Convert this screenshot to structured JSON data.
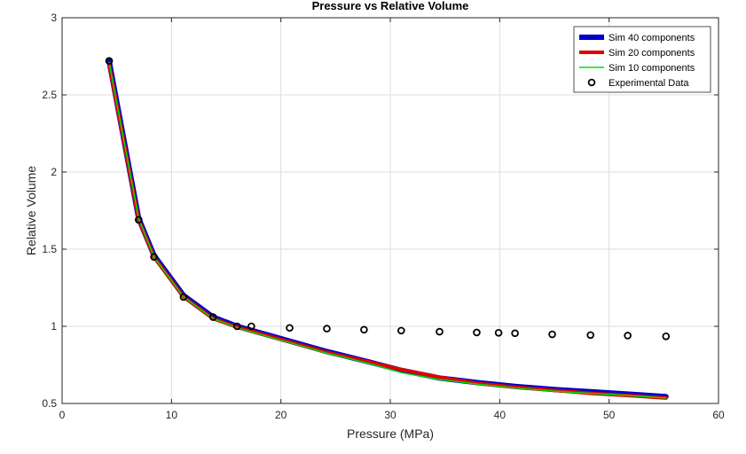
{
  "chart_data": {
    "type": "line",
    "title": "Pressure vs Relative Volume",
    "xlabel": "Pressure (MPa)",
    "ylabel": "Relative Volume",
    "xlim": [
      0,
      60
    ],
    "ylim": [
      0.5,
      3
    ],
    "xticks": [
      0,
      10,
      20,
      30,
      40,
      50,
      60
    ],
    "yticks": [
      0.5,
      1,
      1.5,
      2,
      2.5,
      3
    ],
    "xtick_labels": [
      "0",
      "10",
      "20",
      "30",
      "40",
      "50",
      "60"
    ],
    "ytick_labels": [
      "0.5",
      "1",
      "1.5",
      "2",
      "2.5",
      "3"
    ],
    "grid": true,
    "legend_position": "top-right",
    "series": [
      {
        "name": "Sim 40 components",
        "kind": "line",
        "color": "#0000cc",
        "x": [
          4.3,
          7.0,
          8.4,
          11.1,
          13.8,
          16.0,
          20.0,
          24.0,
          28.0,
          31.0,
          34.5,
          38.0,
          41.5,
          45.0,
          48.5,
          52.0,
          55.2
        ],
        "y": [
          2.72,
          1.7,
          1.46,
          1.2,
          1.06,
          1.0,
          0.92,
          0.84,
          0.77,
          0.715,
          0.665,
          0.635,
          0.61,
          0.59,
          0.575,
          0.56,
          0.545
        ]
      },
      {
        "name": "Sim 20 components",
        "kind": "line",
        "color": "#e00000",
        "x": [
          4.3,
          7.0,
          8.4,
          11.1,
          13.8,
          16.0,
          20.0,
          24.0,
          28.0,
          31.0,
          34.5,
          38.0,
          41.5,
          45.0,
          48.5,
          52.0,
          55.2
        ],
        "y": [
          2.7,
          1.69,
          1.45,
          1.19,
          1.05,
          0.995,
          0.915,
          0.835,
          0.77,
          0.72,
          0.67,
          0.63,
          0.605,
          0.585,
          0.565,
          0.55,
          0.535
        ]
      },
      {
        "name": "Sim 10 components",
        "kind": "line",
        "color": "#00dd00",
        "x": [
          4.3,
          7.0,
          8.4,
          11.1,
          13.8,
          16.0,
          20.0,
          24.0,
          28.0,
          31.0,
          34.5,
          38.0,
          41.5,
          45.0,
          48.5,
          52.0,
          55.2
        ],
        "y": [
          2.71,
          1.7,
          1.45,
          1.19,
          1.05,
          0.99,
          0.91,
          0.83,
          0.76,
          0.7,
          0.655,
          0.625,
          0.6,
          0.58,
          0.565,
          0.55,
          0.535
        ]
      },
      {
        "name": "Experimental Data",
        "kind": "scatter",
        "color": "#000000",
        "x": [
          4.3,
          7.0,
          8.4,
          11.1,
          13.8,
          16.0,
          17.3,
          20.8,
          24.2,
          27.6,
          31.0,
          34.5,
          37.9,
          39.9,
          41.4,
          44.8,
          48.3,
          51.7,
          55.2
        ],
        "y": [
          2.72,
          1.69,
          1.45,
          1.19,
          1.06,
          1.0,
          1.0,
          0.99,
          0.985,
          0.978,
          0.972,
          0.965,
          0.96,
          0.958,
          0.955,
          0.948,
          0.943,
          0.94,
          0.935
        ]
      }
    ]
  }
}
